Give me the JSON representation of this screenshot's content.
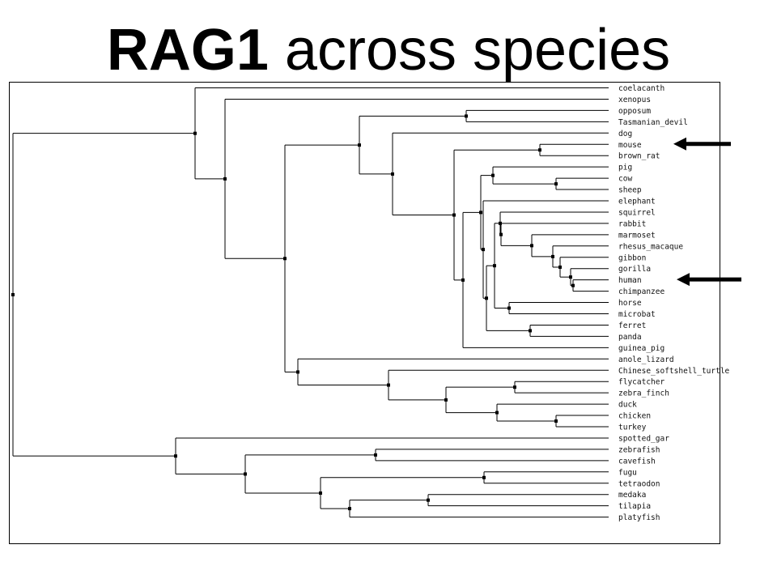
{
  "slide_title": {
    "gene": "RAG1",
    "rest": " across species"
  },
  "tree": {
    "leaves": [
      "coelacanth",
      "xenopus",
      "opposum",
      "Tasmanian_devil",
      "dog",
      "mouse",
      "brown_rat",
      "pig",
      "cow",
      "sheep",
      "elephant",
      "squirrel",
      "rabbit",
      "marmoset",
      "rhesus_macaque",
      "gibbon",
      "gorilla",
      "human",
      "chimpanzee",
      "horse",
      "microbat",
      "ferret",
      "panda",
      "guinea_pig",
      "anole_lizard",
      "Chinese_softshell_turtle",
      "flycatcher",
      "zebra_finch",
      "duck",
      "chicken",
      "turkey",
      "spotted_gar",
      "zebrafish",
      "cavefish",
      "fugu",
      "tetraodon",
      "medaka",
      "tilapia",
      "platyfish"
    ],
    "highlighted_leaves": [
      "mouse",
      "human"
    ],
    "line_color": "#000000",
    "arrow_color": "#000000"
  }
}
